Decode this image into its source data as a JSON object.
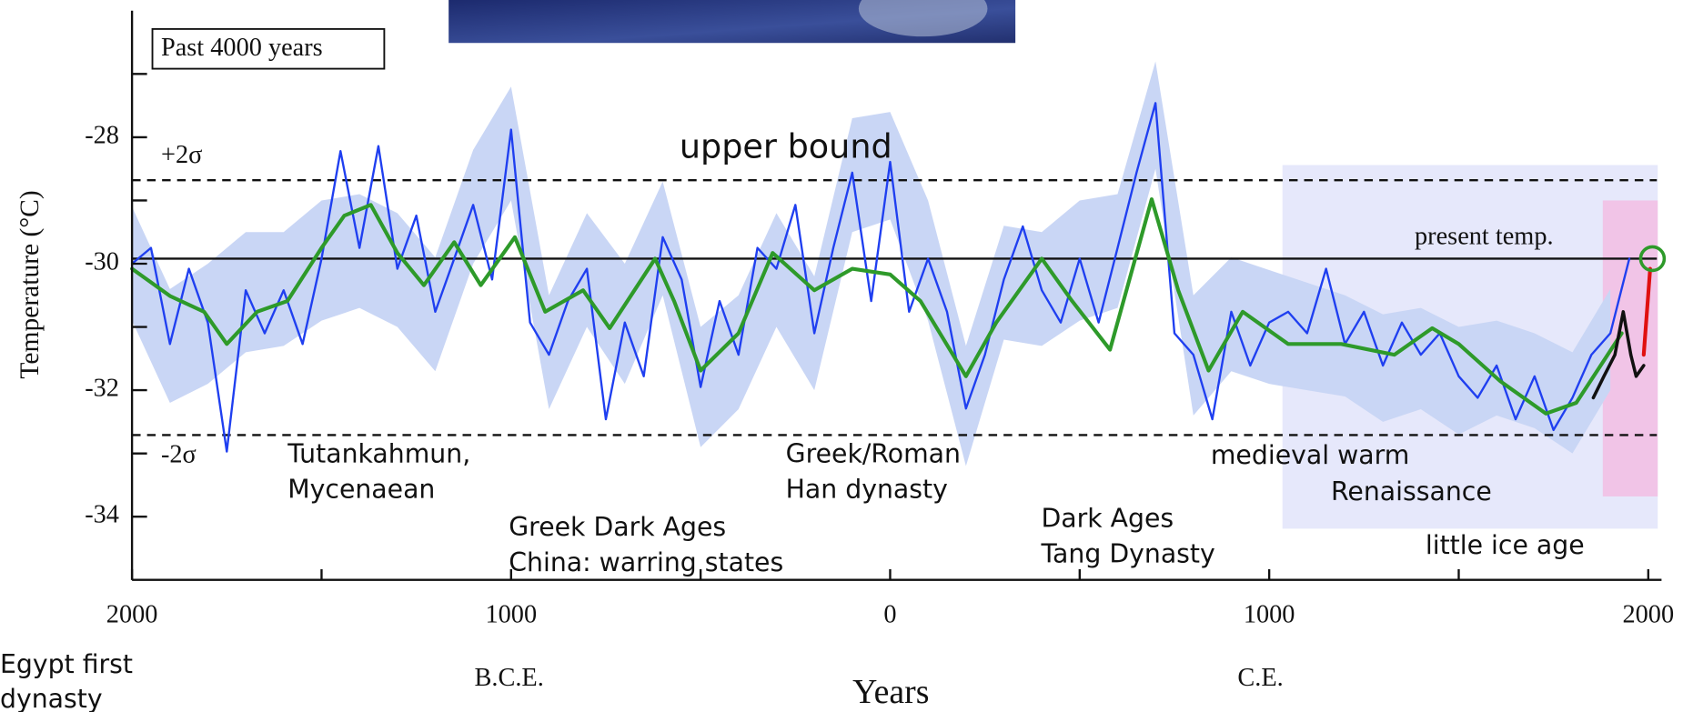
{
  "chart_data": {
    "type": "line",
    "inset_label": "Past 4000 years",
    "x_label": "Years",
    "y_label": "Temperature (°C)",
    "era_labels": [
      "B.C.E.",
      "C.E."
    ],
    "xlim": [
      -2000,
      2035
    ],
    "ylim": [
      -35,
      -26
    ],
    "xticks": [
      {
        "value": -2000,
        "label": "2000"
      },
      {
        "value": -1000,
        "label": "1000"
      },
      0,
      1000,
      2000
    ],
    "xminorticks": [
      -1500,
      -500,
      500,
      1500
    ],
    "yticks": [
      -28,
      -30,
      -32,
      -34
    ],
    "yminorticks": [
      -27,
      -29,
      -31,
      -33
    ],
    "band": {
      "color": "#c9d6f5",
      "x": [
        -2000,
        -1900,
        -1800,
        -1700,
        -1600,
        -1500,
        -1400,
        -1300,
        -1200,
        -1100,
        -1000,
        -900,
        -800,
        -700,
        -600,
        -500,
        -400,
        -300,
        -200,
        -100,
        0,
        100,
        200,
        300,
        400,
        500,
        600,
        700,
        800,
        900,
        1000,
        1100,
        1200,
        1300,
        1400,
        1500,
        1600,
        1700,
        1800,
        1900
      ],
      "upper": [
        -29.1,
        -30.4,
        -30.0,
        -29.5,
        -29.5,
        -29.0,
        -28.9,
        -29.2,
        -29.9,
        -28.2,
        -27.2,
        -30.5,
        -29.2,
        -30.0,
        -28.7,
        -31.0,
        -30.5,
        -29.2,
        -30.2,
        -27.7,
        -27.6,
        -29.0,
        -31.3,
        -29.4,
        -29.5,
        -29.0,
        -28.9,
        -26.8,
        -30.5,
        -29.9,
        -30.1,
        -30.3,
        -30.5,
        -30.8,
        -30.7,
        -31.0,
        -30.9,
        -31.1,
        -31.4,
        -30.4
      ],
      "lower": [
        -30.9,
        -32.2,
        -31.9,
        -31.4,
        -31.3,
        -30.9,
        -30.7,
        -31.0,
        -31.7,
        -30.0,
        -29.0,
        -32.3,
        -31.0,
        -31.9,
        -30.5,
        -32.9,
        -32.3,
        -31.0,
        -32.0,
        -29.5,
        -29.3,
        -30.9,
        -33.2,
        -31.2,
        -31.3,
        -30.9,
        -30.7,
        -28.5,
        -32.4,
        -31.7,
        -31.9,
        -32.0,
        -32.1,
        -32.5,
        -32.3,
        -32.7,
        -32.4,
        -32.6,
        -33.0,
        -32.0
      ]
    },
    "series": [
      {
        "color": "#1f3ff0",
        "width": 2,
        "x": [
          -2000,
          -1950,
          -1900,
          -1850,
          -1800,
          -1750,
          -1700,
          -1650,
          -1600,
          -1550,
          -1500,
          -1450,
          -1400,
          -1350,
          -1300,
          -1250,
          -1200,
          -1150,
          -1100,
          -1050,
          -1000,
          -950,
          -900,
          -850,
          -800,
          -750,
          -700,
          -650,
          -600,
          -550,
          -500,
          -450,
          -400,
          -350,
          -300,
          -250,
          -200,
          -150,
          -100,
          -50,
          0,
          50,
          100,
          150,
          200,
          250,
          300,
          350,
          400,
          450,
          500,
          550,
          600,
          650,
          700,
          750,
          800,
          850,
          900,
          950,
          1000,
          1050,
          1100,
          1150,
          1200,
          1250,
          1300,
          1350,
          1400,
          1450,
          1500,
          1550,
          1600,
          1650,
          1700,
          1750,
          1800,
          1850,
          1900,
          1950
        ],
        "values": [
          -30.0,
          -29.75,
          -31.27,
          -30.08,
          -30.93,
          -32.97,
          -30.42,
          -31.1,
          -30.42,
          -31.27,
          -29.92,
          -28.22,
          -29.75,
          -28.14,
          -30.08,
          -29.24,
          -30.76,
          -29.92,
          -29.07,
          -30.25,
          -27.88,
          -30.93,
          -31.44,
          -30.59,
          -30.08,
          -32.46,
          -30.93,
          -31.78,
          -29.58,
          -30.25,
          -31.95,
          -30.59,
          -31.44,
          -29.75,
          -30.08,
          -29.07,
          -31.1,
          -29.75,
          -28.56,
          -30.59,
          -28.39,
          -30.76,
          -29.92,
          -30.76,
          -32.29,
          -31.44,
          -30.25,
          -29.41,
          -30.42,
          -30.93,
          -29.92,
          -30.93,
          -29.75,
          -28.56,
          -27.46,
          -31.1,
          -31.44,
          -32.46,
          -30.76,
          -31.61,
          -30.93,
          -30.76,
          -31.1,
          -30.08,
          -31.27,
          -30.76,
          -31.61,
          -30.93,
          -31.44,
          -31.1,
          -31.78,
          -32.12,
          -31.61,
          -32.46,
          -31.78,
          -32.63,
          -32.12,
          -31.44,
          -31.1,
          -29.92
        ]
      },
      {
        "color": "#2e9a2a",
        "width": 3.5,
        "x": [
          -2000,
          -1900,
          -1810,
          -1750,
          -1670,
          -1590,
          -1500,
          -1440,
          -1370,
          -1300,
          -1230,
          -1150,
          -1080,
          -990,
          -910,
          -810,
          -740,
          -620,
          -570,
          -500,
          -400,
          -310,
          -200,
          -100,
          0,
          80,
          200,
          280,
          400,
          480,
          580,
          690,
          760,
          840,
          930,
          1050,
          1190,
          1330,
          1430,
          1500,
          1610,
          1730,
          1810,
          1930
        ],
        "values": [
          -30.08,
          -30.51,
          -30.76,
          -31.27,
          -30.76,
          -30.59,
          -29.75,
          -29.24,
          -29.07,
          -29.83,
          -30.34,
          -29.66,
          -30.34,
          -29.58,
          -30.76,
          -30.42,
          -31.02,
          -29.92,
          -30.59,
          -31.69,
          -31.1,
          -29.83,
          -30.42,
          -30.08,
          -30.17,
          -30.59,
          -31.78,
          -30.93,
          -29.92,
          -30.59,
          -31.36,
          -28.98,
          -30.42,
          -31.69,
          -30.76,
          -31.27,
          -31.27,
          -31.44,
          -31.02,
          -31.27,
          -31.86,
          -32.37,
          -32.2,
          -31.1
        ]
      },
      {
        "color": "#111111",
        "width": 3,
        "x": [
          1855,
          1883,
          1912,
          1934,
          1954,
          1968,
          1988
        ],
        "values": [
          -32.12,
          -31.78,
          -31.44,
          -30.76,
          -31.44,
          -31.78,
          -31.61
        ]
      },
      {
        "color": "#e01010",
        "width": 3.5,
        "x": [
          1988,
          2005
        ],
        "values": [
          -31.44,
          -30.08
        ]
      }
    ],
    "regions": [
      {
        "x": [
          1035,
          2025
        ],
        "y": [
          -34.19,
          -28.44
        ],
        "color": "rgba(205,210,248,0.5)"
      },
      {
        "x": [
          1880,
          2025
        ],
        "y": [
          -33.68,
          -29.0
        ],
        "color": "rgba(250,165,215,0.55)"
      }
    ],
    "reference_lines": [
      {
        "value": -28.68,
        "style": "dashed",
        "label": "+2σ"
      },
      {
        "value": -32.71,
        "style": "dashed",
        "label": "-2σ"
      },
      {
        "value": -29.92,
        "style": "solid",
        "label": "present temp."
      }
    ],
    "marker": {
      "x": 2011,
      "y": -29.92,
      "color": "#2e9a2a"
    },
    "annotations": [
      [
        "upper bound"
      ],
      [
        "Tutankahmun,",
        "Mycenaean"
      ],
      [
        "Greek Dark Ages",
        "China: warring states"
      ],
      [
        "Greek/Roman",
        "Han dynasty"
      ],
      [
        "Dark Ages",
        "Tang Dynasty"
      ],
      [
        "medieval warm"
      ],
      [
        "Renaissance"
      ],
      [
        "little ice age"
      ],
      [
        "Egypt first",
        "dynasty"
      ]
    ]
  }
}
